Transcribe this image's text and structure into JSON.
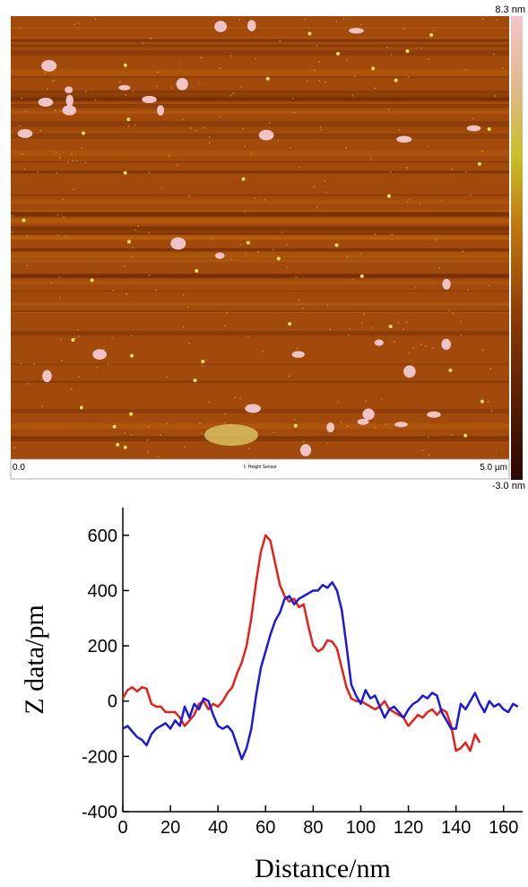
{
  "image": {
    "z_max": "8.3 nm",
    "z_min": "-3.0 nm",
    "x_start": "0.0",
    "channel": "1: Height Sensor",
    "x_end": "5.0 µm"
  },
  "chart_data": {
    "type": "line",
    "x_label": "Distance/nm",
    "y_label": "Z data/pm",
    "xlim": [
      0,
      168
    ],
    "ylim": [
      -400,
      700
    ],
    "xticks": [
      0,
      20,
      40,
      60,
      80,
      100,
      120,
      140,
      160
    ],
    "yticks": [
      -400,
      -200,
      0,
      200,
      400,
      600
    ],
    "x": [
      0,
      2,
      4,
      6,
      8,
      10,
      12,
      14,
      16,
      18,
      20,
      22,
      24,
      26,
      28,
      30,
      32,
      34,
      36,
      38,
      40,
      42,
      44,
      46,
      48,
      50,
      52,
      54,
      56,
      58,
      60,
      62,
      64,
      66,
      68,
      70,
      72,
      74,
      76,
      78,
      80,
      82,
      84,
      86,
      88,
      90,
      92,
      94,
      96,
      98,
      100,
      102,
      104,
      106,
      108,
      110,
      112,
      114,
      116,
      118,
      120,
      122,
      124,
      126,
      128,
      130,
      132,
      134,
      136,
      138,
      140,
      142,
      144,
      146,
      148,
      150,
      152,
      154,
      156,
      158,
      160,
      162,
      164,
      166
    ],
    "series": [
      {
        "color": "#e8201a",
        "values": [
          10,
          40,
          50,
          35,
          50,
          45,
          -10,
          -20,
          -20,
          -40,
          -40,
          -40,
          -60,
          -90,
          -70,
          -50,
          -10,
          0,
          -30,
          -10,
          -20,
          0,
          30,
          50,
          100,
          140,
          200,
          300,
          430,
          540,
          600,
          580,
          500,
          420,
          380,
          360,
          370,
          340,
          350,
          270,
          200,
          180,
          190,
          220,
          215,
          190,
          120,
          50,
          10,
          0,
          0,
          -10,
          -20,
          -30,
          -20,
          0,
          -30,
          -40,
          -50,
          -60,
          -90,
          -70,
          -50,
          -60,
          -40,
          -30,
          -50,
          -30,
          -40,
          -90,
          -180,
          -170,
          -150,
          -180,
          -120,
          -150,
          null,
          null,
          null,
          null,
          null,
          null,
          null,
          null
        ]
      },
      {
        "color": "#1a1ad8",
        "values": [
          -100,
          -90,
          -110,
          -130,
          -140,
          -160,
          -120,
          -100,
          -90,
          -80,
          -100,
          -70,
          -90,
          -20,
          -60,
          -10,
          -30,
          10,
          0,
          -50,
          -90,
          -100,
          -90,
          -110,
          -160,
          -210,
          -170,
          -100,
          20,
          120,
          180,
          240,
          290,
          320,
          370,
          380,
          350,
          370,
          380,
          390,
          400,
          400,
          420,
          410,
          430,
          400,
          330,
          200,
          60,
          20,
          -10,
          40,
          10,
          20,
          -20,
          -60,
          -30,
          -20,
          -40,
          -60,
          -30,
          -10,
          0,
          20,
          10,
          30,
          20,
          -40,
          -70,
          -100,
          -100,
          -10,
          -30,
          0,
          30,
          -10,
          -40,
          0,
          -20,
          -10,
          -30,
          -40,
          -10,
          -20
        ]
      }
    ]
  }
}
